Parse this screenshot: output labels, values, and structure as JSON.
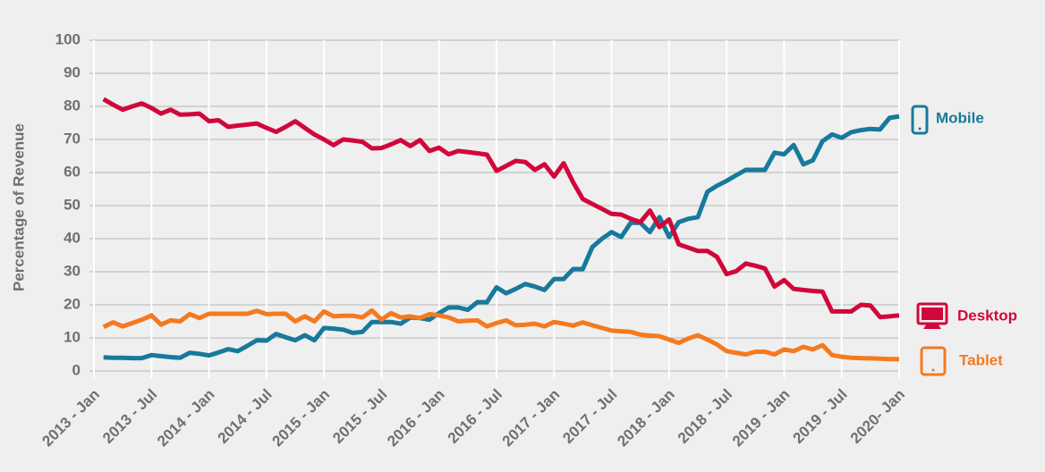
{
  "chart_data": {
    "type": "line",
    "y_label": "Percentage of Revenue",
    "x": [
      "2013-02",
      "2013-03",
      "2013-04",
      "2013-05",
      "2013-06",
      "2013-07",
      "2013-08",
      "2013-09",
      "2013-10",
      "2013-11",
      "2013-12",
      "2014-01",
      "2014-02",
      "2014-03",
      "2014-04",
      "2014-05",
      "2014-06",
      "2014-07",
      "2014-08",
      "2014-09",
      "2014-10",
      "2014-11",
      "2014-12",
      "2015-01",
      "2015-02",
      "2015-03",
      "2015-04",
      "2015-05",
      "2015-06",
      "2015-07",
      "2015-08",
      "2015-09",
      "2015-10",
      "2015-11",
      "2015-12",
      "2016-01",
      "2016-02",
      "2016-03",
      "2016-04",
      "2016-05",
      "2016-06",
      "2016-07",
      "2016-08",
      "2016-09",
      "2016-10",
      "2016-11",
      "2016-12",
      "2017-01",
      "2017-02",
      "2017-03",
      "2017-04",
      "2017-05",
      "2017-06",
      "2017-07",
      "2017-08",
      "2017-09",
      "2017-10",
      "2017-11",
      "2017-12",
      "2018-01",
      "2018-02",
      "2018-03",
      "2018-04",
      "2018-05",
      "2018-06",
      "2018-07",
      "2018-08",
      "2018-09",
      "2018-10",
      "2018-11",
      "2018-12",
      "2019-01",
      "2019-02",
      "2019-03",
      "2019-04",
      "2019-05",
      "2019-06",
      "2019-07",
      "2019-08",
      "2019-09",
      "2019-10",
      "2019-11",
      "2019-12",
      "2020-01"
    ],
    "xlim": [
      "2013-01",
      "2020-01"
    ],
    "xticks": [
      {
        "value": "2013-01",
        "label": "2013 - Jan"
      },
      {
        "value": "2013-07",
        "label": "2013 - Jul"
      },
      {
        "value": "2014-01",
        "label": "2014 - Jan"
      },
      {
        "value": "2014-07",
        "label": "2014 - Jul"
      },
      {
        "value": "2015-01",
        "label": "2015 - Jan"
      },
      {
        "value": "2015-07",
        "label": "2015 - Jul"
      },
      {
        "value": "2016-01",
        "label": "2016 - Jan"
      },
      {
        "value": "2016-07",
        "label": "2016 - Jul"
      },
      {
        "value": "2017-01",
        "label": "2017 - Jan"
      },
      {
        "value": "2017-07",
        "label": "2017 - Jul"
      },
      {
        "value": "2018-01",
        "label": "2018 - Jan"
      },
      {
        "value": "2018-07",
        "label": "2018 - Jul"
      },
      {
        "value": "2019-01",
        "label": "2019 - Jan"
      },
      {
        "value": "2019-07",
        "label": "2019 - Jul"
      },
      {
        "value": "2020-01",
        "label": "2020- Jan"
      }
    ],
    "ylim": [
      0,
      100
    ],
    "yticks": [
      0,
      10,
      20,
      30,
      40,
      50,
      60,
      70,
      80,
      90,
      100
    ],
    "grid": true,
    "series": [
      {
        "name": "Mobile",
        "color": "#17799b",
        "values": [
          4.1,
          4,
          4,
          3.9,
          3.9,
          4.8,
          4.5,
          4.2,
          4,
          5.5,
          5.2,
          4.7,
          5.6,
          6.6,
          6,
          7.6,
          9.3,
          9.2,
          11.2,
          10.2,
          9.3,
          10.8,
          9.3,
          13,
          12.8,
          12.5,
          11.5,
          11.8,
          14.8,
          14.8,
          14.8,
          14.3,
          16.2,
          16,
          15.5,
          17.5,
          19.2,
          19.2,
          18.5,
          20.8,
          20.8,
          25.3,
          23.5,
          24.8,
          26.3,
          25.5,
          24.5,
          27.8,
          27.8,
          30.8,
          30.8,
          37.5,
          40,
          42,
          40.5,
          44.8,
          44.8,
          42,
          46.5,
          40.5,
          45,
          46,
          46.5,
          54.2,
          56,
          57.5,
          59.2,
          60.8,
          60.8,
          60.8,
          66,
          65.5,
          68.3,
          62.5,
          63.7,
          69.5,
          71.5,
          70.5,
          72.2,
          72.8,
          73.2,
          73,
          76.5,
          77
        ]
      },
      {
        "name": "Desktop",
        "color": "#d1073b",
        "values": [
          82.2,
          80.5,
          79,
          80,
          80.9,
          79.5,
          77.8,
          79,
          77.5,
          77.6,
          77.8,
          75.5,
          75.8,
          73.8,
          74.2,
          74.5,
          74.8,
          73.5,
          72.3,
          73.8,
          75.5,
          73.5,
          71.5,
          70,
          68.3,
          70,
          69.7,
          69.3,
          67.3,
          67.4,
          68.5,
          69.8,
          68,
          69.8,
          66.5,
          67.5,
          65.5,
          66.5,
          66.2,
          65.8,
          65.4,
          60.5,
          62,
          63.5,
          63.2,
          60.8,
          62.5,
          58.8,
          62.8,
          57,
          52,
          50.5,
          49,
          47.5,
          47.3,
          46,
          45,
          48.5,
          43.5,
          45.8,
          38.3,
          37.3,
          36.3,
          36.3,
          34.5,
          29.3,
          30.2,
          32.5,
          31.8,
          31,
          25.5,
          27.5,
          24.8,
          24.5,
          24.2,
          24,
          18,
          18,
          18,
          20,
          19.8,
          16.3,
          16.5,
          16.8
        ]
      },
      {
        "name": "Tablet",
        "color": "#f47a20",
        "values": [
          13.3,
          14.7,
          13.5,
          14.5,
          15.5,
          16.8,
          14,
          15.3,
          15,
          17.2,
          16,
          17.3,
          17.3,
          17.3,
          17.3,
          17.3,
          18.2,
          17.2,
          17.3,
          17.3,
          15,
          16.5,
          15,
          18,
          16.5,
          16.7,
          16.7,
          16.2,
          18.3,
          15.5,
          17.5,
          16.2,
          16.5,
          16,
          17.2,
          16.8,
          16.2,
          15,
          15.2,
          15.3,
          13.5,
          14.5,
          15.3,
          13.8,
          14,
          14.3,
          13.5,
          14.8,
          14.3,
          13.7,
          14.7,
          13.8,
          13,
          12.2,
          12,
          11.8,
          11,
          10.7,
          10.5,
          9.5,
          8.5,
          9.8,
          10.8,
          9.5,
          8,
          6,
          5.5,
          5,
          5.8,
          5.8,
          5,
          6.5,
          6,
          7.3,
          6.5,
          7.8,
          4.8,
          4.3,
          4,
          3.9,
          3.8,
          3.7,
          3.6,
          3.6
        ]
      }
    ]
  }
}
